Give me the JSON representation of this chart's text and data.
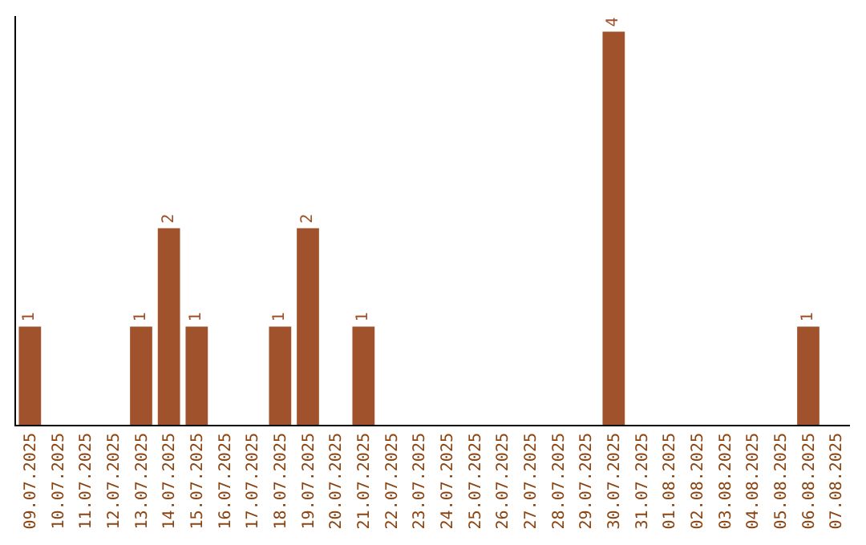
{
  "chart_data": {
    "type": "bar",
    "categories": [
      "09.07.2025",
      "10.07.2025",
      "11.07.2025",
      "12.07.2025",
      "13.07.2025",
      "14.07.2025",
      "15.07.2025",
      "16.07.2025",
      "17.07.2025",
      "18.07.2025",
      "19.07.2025",
      "20.07.2025",
      "21.07.2025",
      "22.07.2025",
      "23.07.2025",
      "24.07.2025",
      "25.07.2025",
      "26.07.2025",
      "27.07.2025",
      "28.07.2025",
      "29.07.2025",
      "30.07.2025",
      "31.07.2025",
      "01.08.2025",
      "02.08.2025",
      "03.08.2025",
      "04.08.2025",
      "05.08.2025",
      "06.08.2025",
      "07.08.2025"
    ],
    "values": [
      1,
      0,
      0,
      0,
      1,
      2,
      1,
      0,
      0,
      1,
      2,
      0,
      1,
      0,
      0,
      0,
      0,
      0,
      0,
      0,
      0,
      4,
      0,
      0,
      0,
      0,
      0,
      0,
      1,
      0
    ],
    "value_labels": [
      "1",
      null,
      null,
      null,
      "1",
      "2",
      "1",
      null,
      null,
      "1",
      "2",
      null,
      "1",
      null,
      null,
      null,
      null,
      null,
      null,
      null,
      null,
      "4",
      null,
      null,
      null,
      null,
      null,
      null,
      "1",
      null
    ],
    "color": "#a0522d",
    "ylim": [
      0,
      4.16
    ],
    "tick_labels": "x",
    "legend": false
  }
}
